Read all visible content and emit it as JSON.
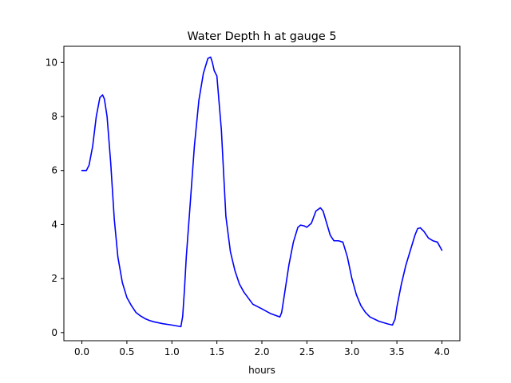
{
  "chart_data": {
    "type": "line",
    "title": "Water Depth h at gauge 5",
    "xlabel": "hours",
    "ylabel": "",
    "xlim": [
      -0.2,
      4.2
    ],
    "ylim": [
      -0.3,
      10.6
    ],
    "xticks": [
      0.0,
      0.5,
      1.0,
      1.5,
      2.0,
      2.5,
      3.0,
      3.5,
      4.0
    ],
    "xtick_labels": [
      "0.0",
      "0.5",
      "1.0",
      "1.5",
      "2.0",
      "2.5",
      "3.0",
      "3.5",
      "4.0"
    ],
    "yticks": [
      0,
      2,
      4,
      6,
      8,
      10
    ],
    "ytick_labels": [
      "0",
      "2",
      "4",
      "6",
      "8",
      "10"
    ],
    "grid": false,
    "series": [
      {
        "color": "#0000ff",
        "x": [
          0.0,
          0.05,
          0.08,
          0.12,
          0.16,
          0.2,
          0.23,
          0.25,
          0.28,
          0.32,
          0.36,
          0.4,
          0.45,
          0.5,
          0.55,
          0.6,
          0.65,
          0.7,
          0.75,
          0.8,
          0.9,
          1.0,
          1.05,
          1.1,
          1.12,
          1.14,
          1.16,
          1.2,
          1.25,
          1.3,
          1.35,
          1.4,
          1.43,
          1.45,
          1.47,
          1.5,
          1.55,
          1.6,
          1.65,
          1.7,
          1.75,
          1.8,
          1.9,
          2.0,
          2.1,
          2.2,
          2.22,
          2.25,
          2.3,
          2.35,
          2.4,
          2.43,
          2.47,
          2.5,
          2.55,
          2.6,
          2.65,
          2.68,
          2.72,
          2.76,
          2.8,
          2.85,
          2.9,
          2.95,
          3.0,
          3.05,
          3.1,
          3.15,
          3.2,
          3.3,
          3.4,
          3.45,
          3.48,
          3.5,
          3.55,
          3.6,
          3.65,
          3.7,
          3.73,
          3.76,
          3.8,
          3.85,
          3.9,
          3.95,
          4.0
        ],
        "values": [
          6.0,
          6.0,
          6.2,
          6.9,
          8.0,
          8.7,
          8.8,
          8.65,
          8.0,
          6.3,
          4.2,
          2.8,
          1.85,
          1.3,
          1.0,
          0.75,
          0.62,
          0.52,
          0.45,
          0.4,
          0.33,
          0.28,
          0.25,
          0.22,
          0.6,
          1.6,
          2.8,
          4.6,
          6.9,
          8.6,
          9.6,
          10.15,
          10.2,
          10.0,
          9.7,
          9.5,
          7.5,
          4.3,
          3.0,
          2.3,
          1.8,
          1.5,
          1.05,
          0.88,
          0.7,
          0.58,
          0.75,
          1.4,
          2.5,
          3.35,
          3.9,
          3.98,
          3.95,
          3.9,
          4.05,
          4.5,
          4.62,
          4.5,
          4.05,
          3.6,
          3.4,
          3.4,
          3.35,
          2.8,
          2.0,
          1.4,
          1.0,
          0.75,
          0.58,
          0.42,
          0.32,
          0.28,
          0.5,
          0.95,
          1.8,
          2.5,
          3.05,
          3.6,
          3.85,
          3.88,
          3.75,
          3.5,
          3.4,
          3.35,
          3.05
        ]
      }
    ]
  }
}
